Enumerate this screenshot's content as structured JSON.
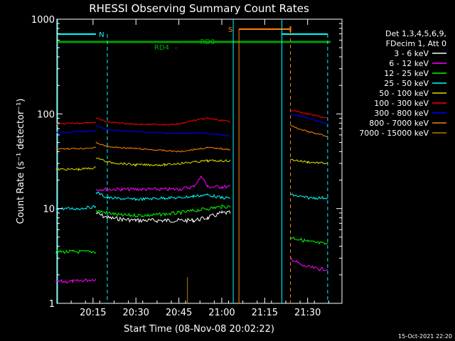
{
  "chart_data": {
    "type": "line",
    "title": "RHESSI Observing Summary Count Rates",
    "xlabel": "Start Time (08-Nov-08 20:02:22)",
    "ylabel": "Count Rate (s⁻¹ detector⁻¹)",
    "y_scale": "log",
    "ylim": [
      1,
      1000
    ],
    "xlim": [
      "20:02:22",
      "21:42:00"
    ],
    "x_ticks": [
      "20:15",
      "20:30",
      "20:45",
      "21:00",
      "21:15",
      "21:30"
    ],
    "y_ticks": [
      "1",
      "10",
      "100",
      "1000"
    ],
    "legend_header": [
      "Det 1,3,4,5,6,9,",
      "FDecim 1, Att 0"
    ],
    "legend_position": "right",
    "series": [
      {
        "name": "3 - 6 keV",
        "color": "#ffffff",
        "segments": [
          {
            "x": [
              "20:11",
              "20:16",
              "20:20",
              "20:30",
              "20:40",
              "20:50",
              "20:55",
              "21:00",
              "21:03"
            ],
            "y": [
              null,
              9,
              8,
              7.5,
              7.5,
              7.5,
              8,
              9,
              9
            ]
          }
        ]
      },
      {
        "name": "6 - 12 keV",
        "color": "#ff00ff",
        "segments": [
          {
            "x": [
              "20:02",
              "20:08",
              "20:16"
            ],
            "y": [
              1.7,
              1.7,
              1.8
            ]
          },
          {
            "x": [
              "20:16",
              "20:25",
              "20:35",
              "20:45",
              "20:50",
              "20:53",
              "20:55",
              "21:00",
              "21:03"
            ],
            "y": [
              16,
              16,
              16,
              16,
              17,
              22,
              17,
              17,
              17
            ]
          },
          {
            "x": [
              "21:24",
              "21:28",
              "21:34",
              "21:37"
            ],
            "y": [
              3,
              2.5,
              2.3,
              2.3
            ]
          }
        ]
      },
      {
        "name": "12 - 25 keV",
        "color": "#00ff00",
        "segments": [
          {
            "x": [
              "20:02",
              "20:08",
              "20:16"
            ],
            "y": [
              3.5,
              3.5,
              3.5
            ]
          },
          {
            "x": [
              "20:16",
              "20:25",
              "20:35",
              "20:45",
              "20:55",
              "21:00",
              "21:03"
            ],
            "y": [
              9.5,
              8.5,
              8.5,
              9,
              10,
              10.5,
              10.5
            ]
          },
          {
            "x": [
              "21:24",
              "21:30",
              "21:37"
            ],
            "y": [
              5,
              4.5,
              4.2
            ]
          }
        ]
      },
      {
        "name": "25 - 50 keV",
        "color": "#00ffff",
        "segments": [
          {
            "x": [
              "20:02",
              "20:10",
              "20:16"
            ],
            "y": [
              10,
              10,
              10.5
            ]
          },
          {
            "x": [
              "20:16",
              "20:20",
              "20:30",
              "20:40",
              "20:45",
              "20:50",
              "20:55",
              "21:00",
              "21:03"
            ],
            "y": [
              15,
              13,
              12.5,
              13,
              13,
              13.5,
              14,
              13,
              13
            ]
          },
          {
            "x": [
              "21:24",
              "21:30",
              "21:37"
            ],
            "y": [
              14,
              13,
              13
            ]
          }
        ]
      },
      {
        "name": "50 - 100 keV",
        "color": "#dddd00",
        "segments": [
          {
            "x": [
              "20:02",
              "20:10",
              "20:16"
            ],
            "y": [
              26,
              26,
              27
            ]
          },
          {
            "x": [
              "20:16",
              "20:20",
              "20:30",
              "20:40",
              "20:45",
              "20:55",
              "21:03"
            ],
            "y": [
              35,
              31,
              29,
              29,
              30,
              32,
              32
            ]
          },
          {
            "x": [
              "21:24",
              "21:30",
              "21:37"
            ],
            "y": [
              33,
              31,
              30
            ]
          }
        ]
      },
      {
        "name": "100 - 300 keV",
        "color": "#ff0000",
        "segments": [
          {
            "x": [
              "20:02",
              "20:10",
              "20:16"
            ],
            "y": [
              78,
              80,
              82
            ]
          },
          {
            "x": [
              "20:16",
              "20:20",
              "20:30",
              "20:40",
              "20:45",
              "20:50",
              "20:55",
              "21:00",
              "21:03"
            ],
            "y": [
              90,
              82,
              78,
              77,
              78,
              85,
              90,
              85,
              83
            ]
          },
          {
            "x": [
              "21:24",
              "21:30",
              "21:37"
            ],
            "y": [
              110,
              100,
              90
            ]
          }
        ]
      },
      {
        "name": "300 - 800 keV",
        "color": "#0000ff",
        "segments": [
          {
            "x": [
              "20:02",
              "20:10",
              "20:16"
            ],
            "y": [
              63,
              65,
              66
            ]
          },
          {
            "x": [
              "20:16",
              "20:20",
              "20:30",
              "20:40",
              "20:45",
              "20:50",
              "20:55",
              "21:00",
              "21:03"
            ],
            "y": [
              75,
              68,
              65,
              63,
              62,
              63,
              62,
              60,
              58
            ]
          },
          {
            "x": [
              "21:24",
              "21:30",
              "21:37"
            ],
            "y": [
              100,
              90,
              78
            ]
          }
        ]
      },
      {
        "name": "800 - 7000 keV",
        "color": "#ff8000",
        "segments": [
          {
            "x": [
              "20:02",
              "20:10",
              "20:16"
            ],
            "y": [
              43,
              43,
              44
            ]
          },
          {
            "x": [
              "20:16",
              "20:20",
              "20:30",
              "20:40",
              "20:45",
              "20:50",
              "20:55",
              "21:00",
              "21:03"
            ],
            "y": [
              50,
              45,
              43,
              41,
              40,
              42,
              44,
              43,
              42
            ]
          },
          {
            "x": [
              "21:24",
              "21:30",
              "21:37"
            ],
            "y": [
              75,
              65,
              58
            ]
          }
        ]
      },
      {
        "name": "7000 - 15000 keV",
        "color": "#b08000",
        "segments": []
      }
    ],
    "annotations": [
      {
        "text": "N",
        "color": "#00ffff",
        "x": "20:15"
      },
      {
        "text": "S",
        "color": "#ff8000",
        "x": "21:06"
      },
      {
        "text": "RD0",
        "color": "#00b000",
        "x": "20:55"
      },
      {
        "text": "RD4",
        "color": "#00b000",
        "x": "20:44"
      }
    ]
  },
  "footer": {
    "timestamp": "15-Oct-2021 22:20"
  }
}
